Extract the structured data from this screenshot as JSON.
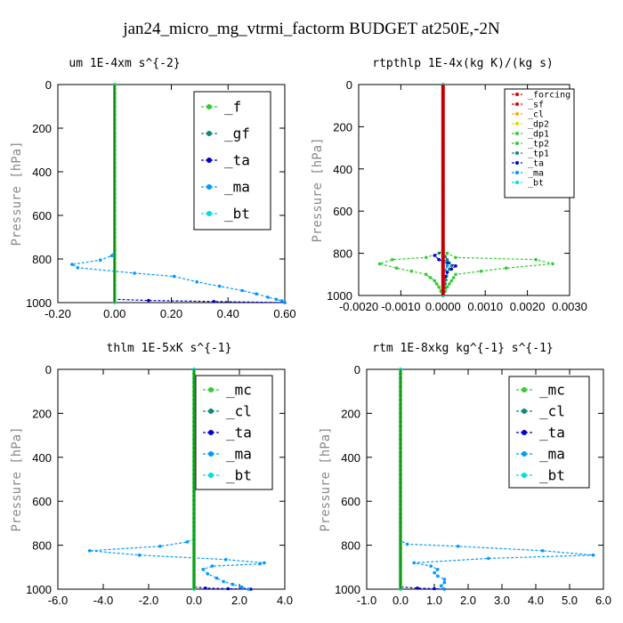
{
  "title": "jan24_micro_mg_vtrmi_factorm  BUDGET at250E,-2N",
  "colors": {
    "red": "#dd0000",
    "orange": "#ffaa00",
    "yellow": "#dddd00",
    "green": "#33cc33",
    "teal": "#118877",
    "blue": "#0000cc",
    "cyan": "#00ccdd",
    "lightblue": "#0099ff",
    "bt": "#00dddd",
    "darkgreen": "#006600"
  },
  "chart_data": [
    {
      "type": "line",
      "title": "um   1E-4xm s^{-2}",
      "ylabel": "Pressure [hPa]",
      "xlim": [
        -0.2,
        0.6
      ],
      "ylim": [
        1000,
        0
      ],
      "xticks": [
        "-0.20",
        "0.00",
        "0.20",
        "0.40",
        "0.60"
      ],
      "yticks": [
        "0",
        "200",
        "400",
        "600",
        "800",
        "1000"
      ],
      "legend_font": 16,
      "series": [
        {
          "name": "_f",
          "color": "#33cc33",
          "x": [
            0,
            0
          ],
          "y": [
            0,
            1000
          ]
        },
        {
          "name": "_gf",
          "color": "#118877",
          "x": [
            0,
            0
          ],
          "y": [
            0,
            1000
          ]
        },
        {
          "name": "_ta",
          "color": "#0000cc",
          "x": [
            0,
            0,
            0.12,
            0.35,
            0.6
          ],
          "y": [
            0,
            985,
            990,
            995,
            1000
          ]
        },
        {
          "name": "_ma",
          "color": "#0099ff",
          "x": [
            0,
            0,
            -0.01,
            -0.05,
            -0.15,
            -0.13,
            0.07,
            0.21,
            0.29,
            0.37,
            0.45,
            0.5,
            0.54,
            0.57,
            0.59,
            0.6
          ],
          "y": [
            0,
            760,
            785,
            805,
            825,
            840,
            865,
            880,
            905,
            925,
            945,
            960,
            975,
            985,
            992,
            1000
          ]
        },
        {
          "name": "_bt",
          "color": "#00dddd",
          "x": [
            0,
            0
          ],
          "y": [
            0,
            1000
          ]
        }
      ]
    },
    {
      "type": "line",
      "title": "rtpthlp   1E-4x(kg K)/(kg s)",
      "ylabel": "Pressure [hPa]",
      "xlim": [
        -0.002,
        0.003
      ],
      "ylim": [
        1000,
        0
      ],
      "xticks": [
        "-0.0020",
        "-0.0010",
        "0.0000",
        "0.0010",
        "0.0020",
        "0.0030"
      ],
      "yticks": [
        "0",
        "200",
        "400",
        "600",
        "800",
        "1000"
      ],
      "legend_font": 10,
      "series": [
        {
          "name": "_forcing",
          "color": "#dd0000",
          "x": [
            0,
            0
          ],
          "y": [
            0,
            1000
          ]
        },
        {
          "name": "_sf",
          "color": "#dd0000",
          "x": [
            0,
            0
          ],
          "y": [
            0,
            1000
          ]
        },
        {
          "name": "_cl",
          "color": "#ffaa00",
          "x": [
            0,
            0
          ],
          "y": [
            0,
            1000
          ]
        },
        {
          "name": "_dp2",
          "color": "#dddd00",
          "x": [
            0,
            0
          ],
          "y": [
            0,
            1000
          ]
        },
        {
          "name": "_dp1",
          "color": "#33cc33",
          "x": [
            0,
            0,
            0.0001,
            0.0003,
            0.0022,
            0.0026,
            0.0015,
            0.0003,
            0.0002,
            0.0001,
            0
          ],
          "y": [
            0,
            780,
            800,
            820,
            830,
            850,
            870,
            900,
            930,
            960,
            1000
          ]
        },
        {
          "name": "_tp2",
          "color": "#33cc33",
          "x": [
            0,
            0,
            -0.0001,
            -0.0004,
            -0.0012,
            -0.0015,
            -0.0011,
            -0.0004,
            -0.0002,
            -0.0001,
            0
          ],
          "y": [
            0,
            780,
            800,
            820,
            830,
            850,
            870,
            900,
            930,
            960,
            1000
          ]
        },
        {
          "name": "_tp1",
          "color": "#118877",
          "x": [
            0,
            0,
            0.0001,
            0.0002,
            0.0001,
            0
          ],
          "y": [
            0,
            800,
            830,
            860,
            890,
            1000
          ]
        },
        {
          "name": "_ta",
          "color": "#0000cc",
          "x": [
            0,
            0,
            -0.0002,
            -0.0001,
            0.0003,
            0.0001,
            0,
            0
          ],
          "y": [
            0,
            790,
            810,
            830,
            860,
            890,
            930,
            1000
          ]
        },
        {
          "name": "_ma",
          "color": "#0099ff",
          "x": [
            0,
            0,
            0.0001,
            0,
            0
          ],
          "y": [
            0,
            820,
            860,
            900,
            1000
          ]
        },
        {
          "name": "_bt",
          "color": "#00dddd",
          "x": [
            0,
            0
          ],
          "y": [
            0,
            1000
          ]
        }
      ]
    },
    {
      "type": "line",
      "title": "thlm   1E-5xK s^{-1}",
      "ylabel": "Pressure [hPa]",
      "xlim": [
        -6.0,
        4.0
      ],
      "ylim": [
        1000,
        0
      ],
      "xticks": [
        "-6.0",
        "-4.0",
        "-2.0",
        "0.0",
        "2.0",
        "4.0"
      ],
      "yticks": [
        "0",
        "200",
        "400",
        "600",
        "800",
        "1000"
      ],
      "legend_font": 16,
      "series": [
        {
          "name": "_mc",
          "color": "#33cc33",
          "x": [
            0,
            0
          ],
          "y": [
            0,
            1000
          ]
        },
        {
          "name": "_cl",
          "color": "#118877",
          "x": [
            0,
            0
          ],
          "y": [
            0,
            1000
          ]
        },
        {
          "name": "_ta",
          "color": "#0000cc",
          "x": [
            0,
            0,
            0.5,
            1.5,
            2.5
          ],
          "y": [
            0,
            990,
            995,
            998,
            1000
          ]
        },
        {
          "name": "_ma",
          "color": "#0099ff",
          "x": [
            0,
            0,
            -0.3,
            -1.5,
            -4.6,
            -2.4,
            1.4,
            3.1,
            2.9,
            0.8,
            0.4,
            0.6,
            1.0,
            1.3,
            1.7,
            2.1,
            2.4
          ],
          "y": [
            0,
            770,
            785,
            805,
            825,
            845,
            865,
            880,
            885,
            895,
            910,
            930,
            950,
            965,
            978,
            990,
            1000
          ]
        },
        {
          "name": "_bt",
          "color": "#00dddd",
          "x": [
            0,
            0
          ],
          "y": [
            0,
            1000
          ]
        }
      ]
    },
    {
      "type": "line",
      "title": "rtm   1E-8xkg kg^{-1} s^{-1}",
      "ylabel": "Pressure [hPa]",
      "xlim": [
        -1.0,
        6.0
      ],
      "ylim": [
        1000,
        0
      ],
      "xticks": [
        "-1.0",
        "0.0",
        "1.0",
        "2.0",
        "3.0",
        "4.0",
        "5.0",
        "6.0"
      ],
      "yticks": [
        "0",
        "200",
        "400",
        "600",
        "800",
        "1000"
      ],
      "legend_font": 16,
      "series": [
        {
          "name": "_mc",
          "color": "#33cc33",
          "x": [
            0,
            0
          ],
          "y": [
            0,
            1000
          ]
        },
        {
          "name": "_cl",
          "color": "#118877",
          "x": [
            0,
            0
          ],
          "y": [
            0,
            1000
          ]
        },
        {
          "name": "_ta",
          "color": "#0000cc",
          "x": [
            0,
            0,
            0.5,
            1.0,
            1.3
          ],
          "y": [
            0,
            990,
            995,
            998,
            1000
          ]
        },
        {
          "name": "_ma",
          "color": "#0099ff",
          "x": [
            0,
            0,
            0.2,
            1.7,
            4.2,
            5.7,
            2.6,
            0.4,
            0.9,
            1.1,
            1.0,
            1.1,
            1.3,
            1.3,
            1.2,
            1.3
          ],
          "y": [
            0,
            780,
            795,
            805,
            825,
            845,
            860,
            880,
            895,
            910,
            925,
            940,
            955,
            970,
            985,
            1000
          ]
        },
        {
          "name": "_bt",
          "color": "#00dddd",
          "x": [
            0,
            0
          ],
          "y": [
            0,
            1000
          ]
        }
      ]
    }
  ]
}
